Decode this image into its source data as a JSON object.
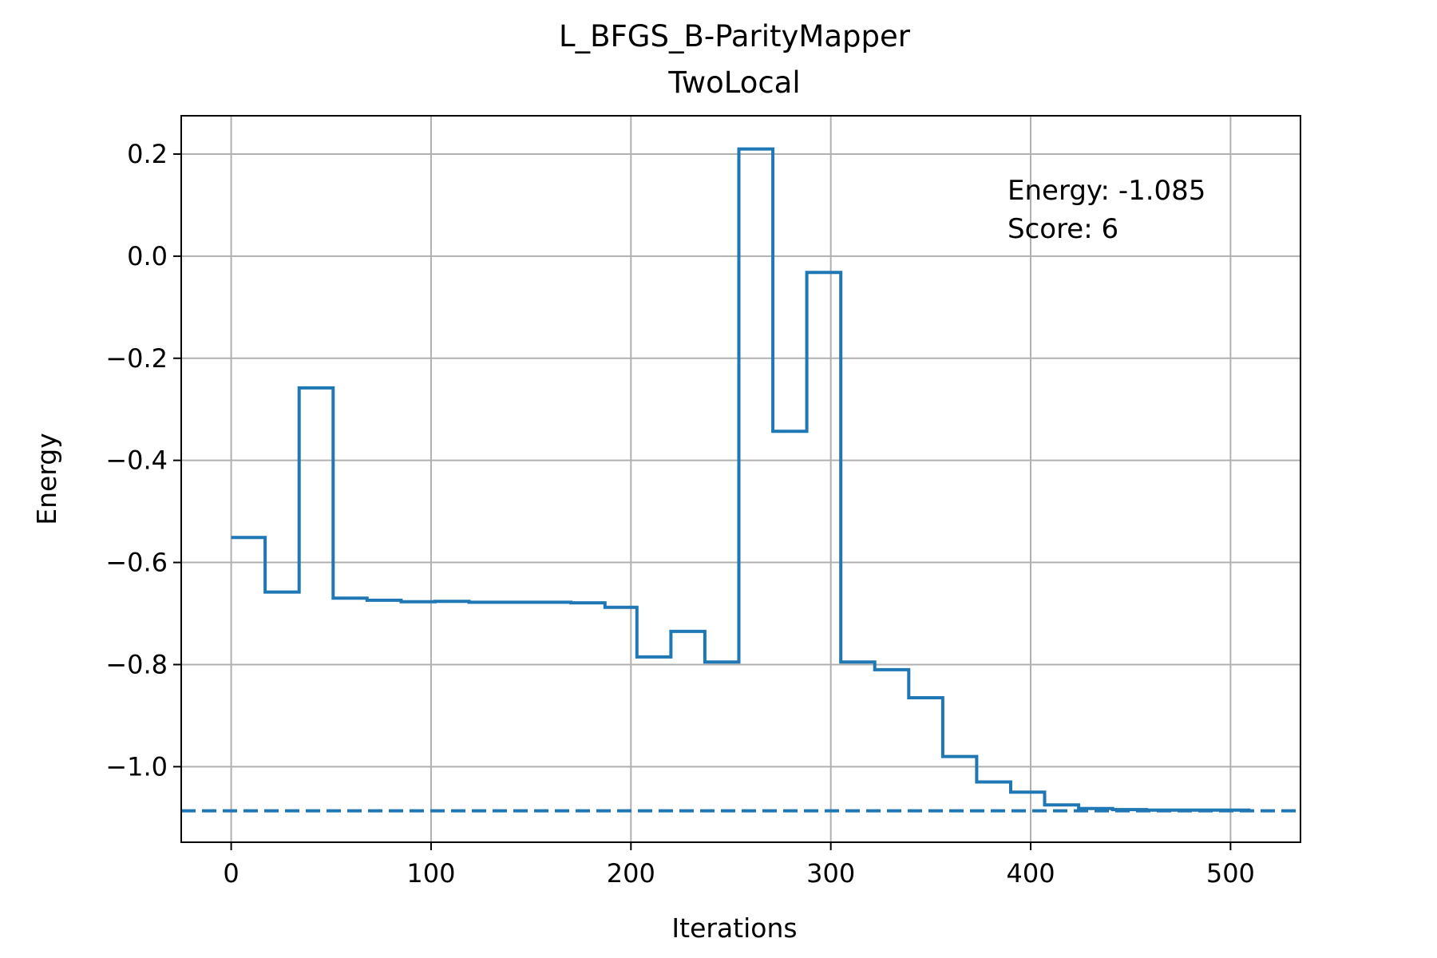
{
  "chart_data": {
    "type": "line",
    "title": "L_BFGS_B-ParityMapper",
    "subtitle": "TwoLocal",
    "xlabel": "Iterations",
    "ylabel": "Energy",
    "xlim": [
      -25,
      535
    ],
    "ylim": [
      -1.148,
      0.275
    ],
    "x_ticks": [
      0,
      100,
      200,
      300,
      400,
      500
    ],
    "x_tick_labels": [
      "0",
      "100",
      "200",
      "300",
      "400",
      "500"
    ],
    "y_ticks": [
      0.2,
      0.0,
      -0.2,
      -0.4,
      -0.6,
      -0.8,
      -1.0
    ],
    "y_tick_labels": [
      "0.2",
      "0.0",
      "−0.2",
      "−0.4",
      "−0.6",
      "−0.8",
      "−1.0"
    ],
    "grid": true,
    "annotations": [
      "Energy: -1.085",
      "Score: 6"
    ],
    "reference_line": {
      "y": -1.0865,
      "style": "dashed"
    },
    "line_color": "#1f77b4",
    "series": [
      {
        "x": [
          0,
          17,
          17,
          34,
          34,
          51,
          51,
          68,
          68,
          85,
          85,
          102,
          102,
          119,
          119,
          170,
          170,
          187,
          187,
          203,
          203,
          220,
          220,
          237,
          237,
          254,
          254,
          271,
          271,
          288,
          288,
          305,
          305,
          322,
          322,
          339,
          339,
          356,
          356,
          373,
          373,
          390,
          390,
          407,
          407,
          424,
          424,
          441,
          441,
          458,
          458,
          510
        ],
        "y": [
          -0.551,
          -0.551,
          -0.658,
          -0.658,
          -0.258,
          -0.258,
          -0.67,
          -0.67,
          -0.674,
          -0.674,
          -0.677,
          -0.677,
          -0.676,
          -0.676,
          -0.678,
          -0.678,
          -0.679,
          -0.679,
          -0.688,
          -0.688,
          -0.785,
          -0.785,
          -0.735,
          -0.735,
          -0.795,
          -0.795,
          0.21,
          0.21,
          -0.343,
          -0.343,
          -0.032,
          -0.032,
          -0.795,
          -0.795,
          -0.81,
          -0.81,
          -0.865,
          -0.865,
          -0.98,
          -0.98,
          -1.03,
          -1.03,
          -1.05,
          -1.05,
          -1.075,
          -1.075,
          -1.082,
          -1.082,
          -1.084,
          -1.084,
          -1.085,
          -1.085
        ]
      }
    ]
  }
}
